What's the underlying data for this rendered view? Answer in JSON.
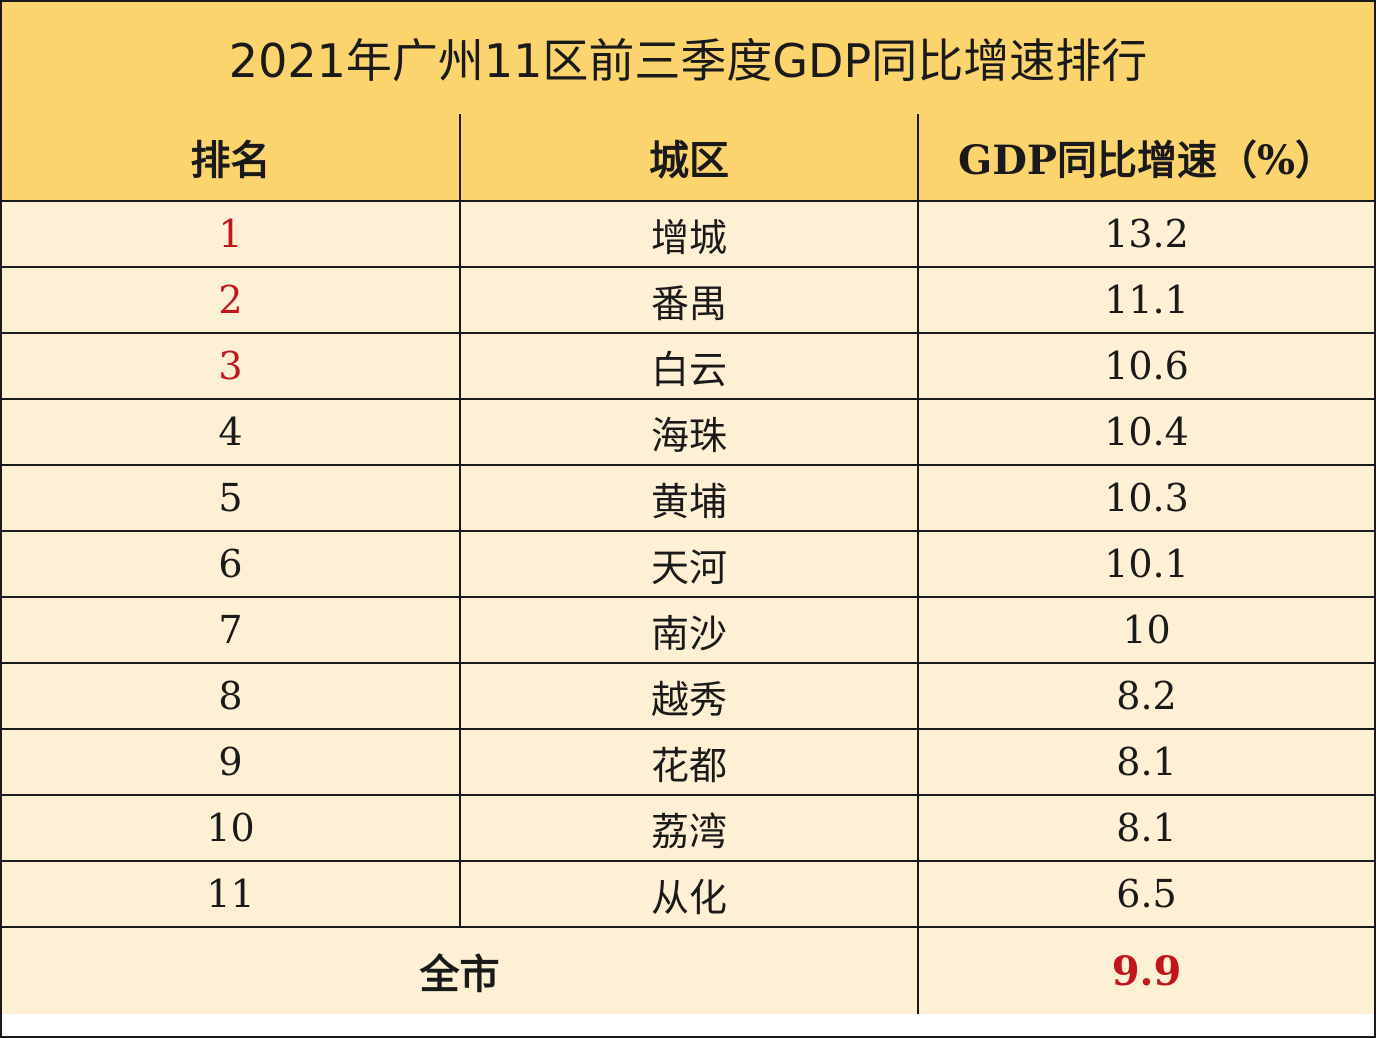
{
  "title": "2021年广州11区前三季度GDP同比增速排行",
  "headers": {
    "rank": "排名",
    "district": "城区",
    "growth": "GDP同比增速（%）"
  },
  "rows": [
    {
      "rank": "1",
      "district": "增城",
      "growth": "13.2"
    },
    {
      "rank": "2",
      "district": "番禺",
      "growth": "11.1"
    },
    {
      "rank": "3",
      "district": "白云",
      "growth": "10.6"
    },
    {
      "rank": "4",
      "district": "海珠",
      "growth": "10.4"
    },
    {
      "rank": "5",
      "district": "黄埔",
      "growth": "10.3"
    },
    {
      "rank": "6",
      "district": "天河",
      "growth": "10.1"
    },
    {
      "rank": "7",
      "district": "南沙",
      "growth": "10"
    },
    {
      "rank": "8",
      "district": "越秀",
      "growth": "8.2"
    },
    {
      "rank": "9",
      "district": "花都",
      "growth": "8.1"
    },
    {
      "rank": "10",
      "district": "荔湾",
      "growth": "8.1"
    },
    {
      "rank": "11",
      "district": "从化",
      "growth": "6.5"
    }
  ],
  "total": {
    "label": "全市",
    "growth": "9.9"
  },
  "colors": {
    "header_bg": "#fbd46d",
    "row_bg": "#fdf0d5",
    "highlight": "#c0161c",
    "border": "#1a1a1a"
  }
}
